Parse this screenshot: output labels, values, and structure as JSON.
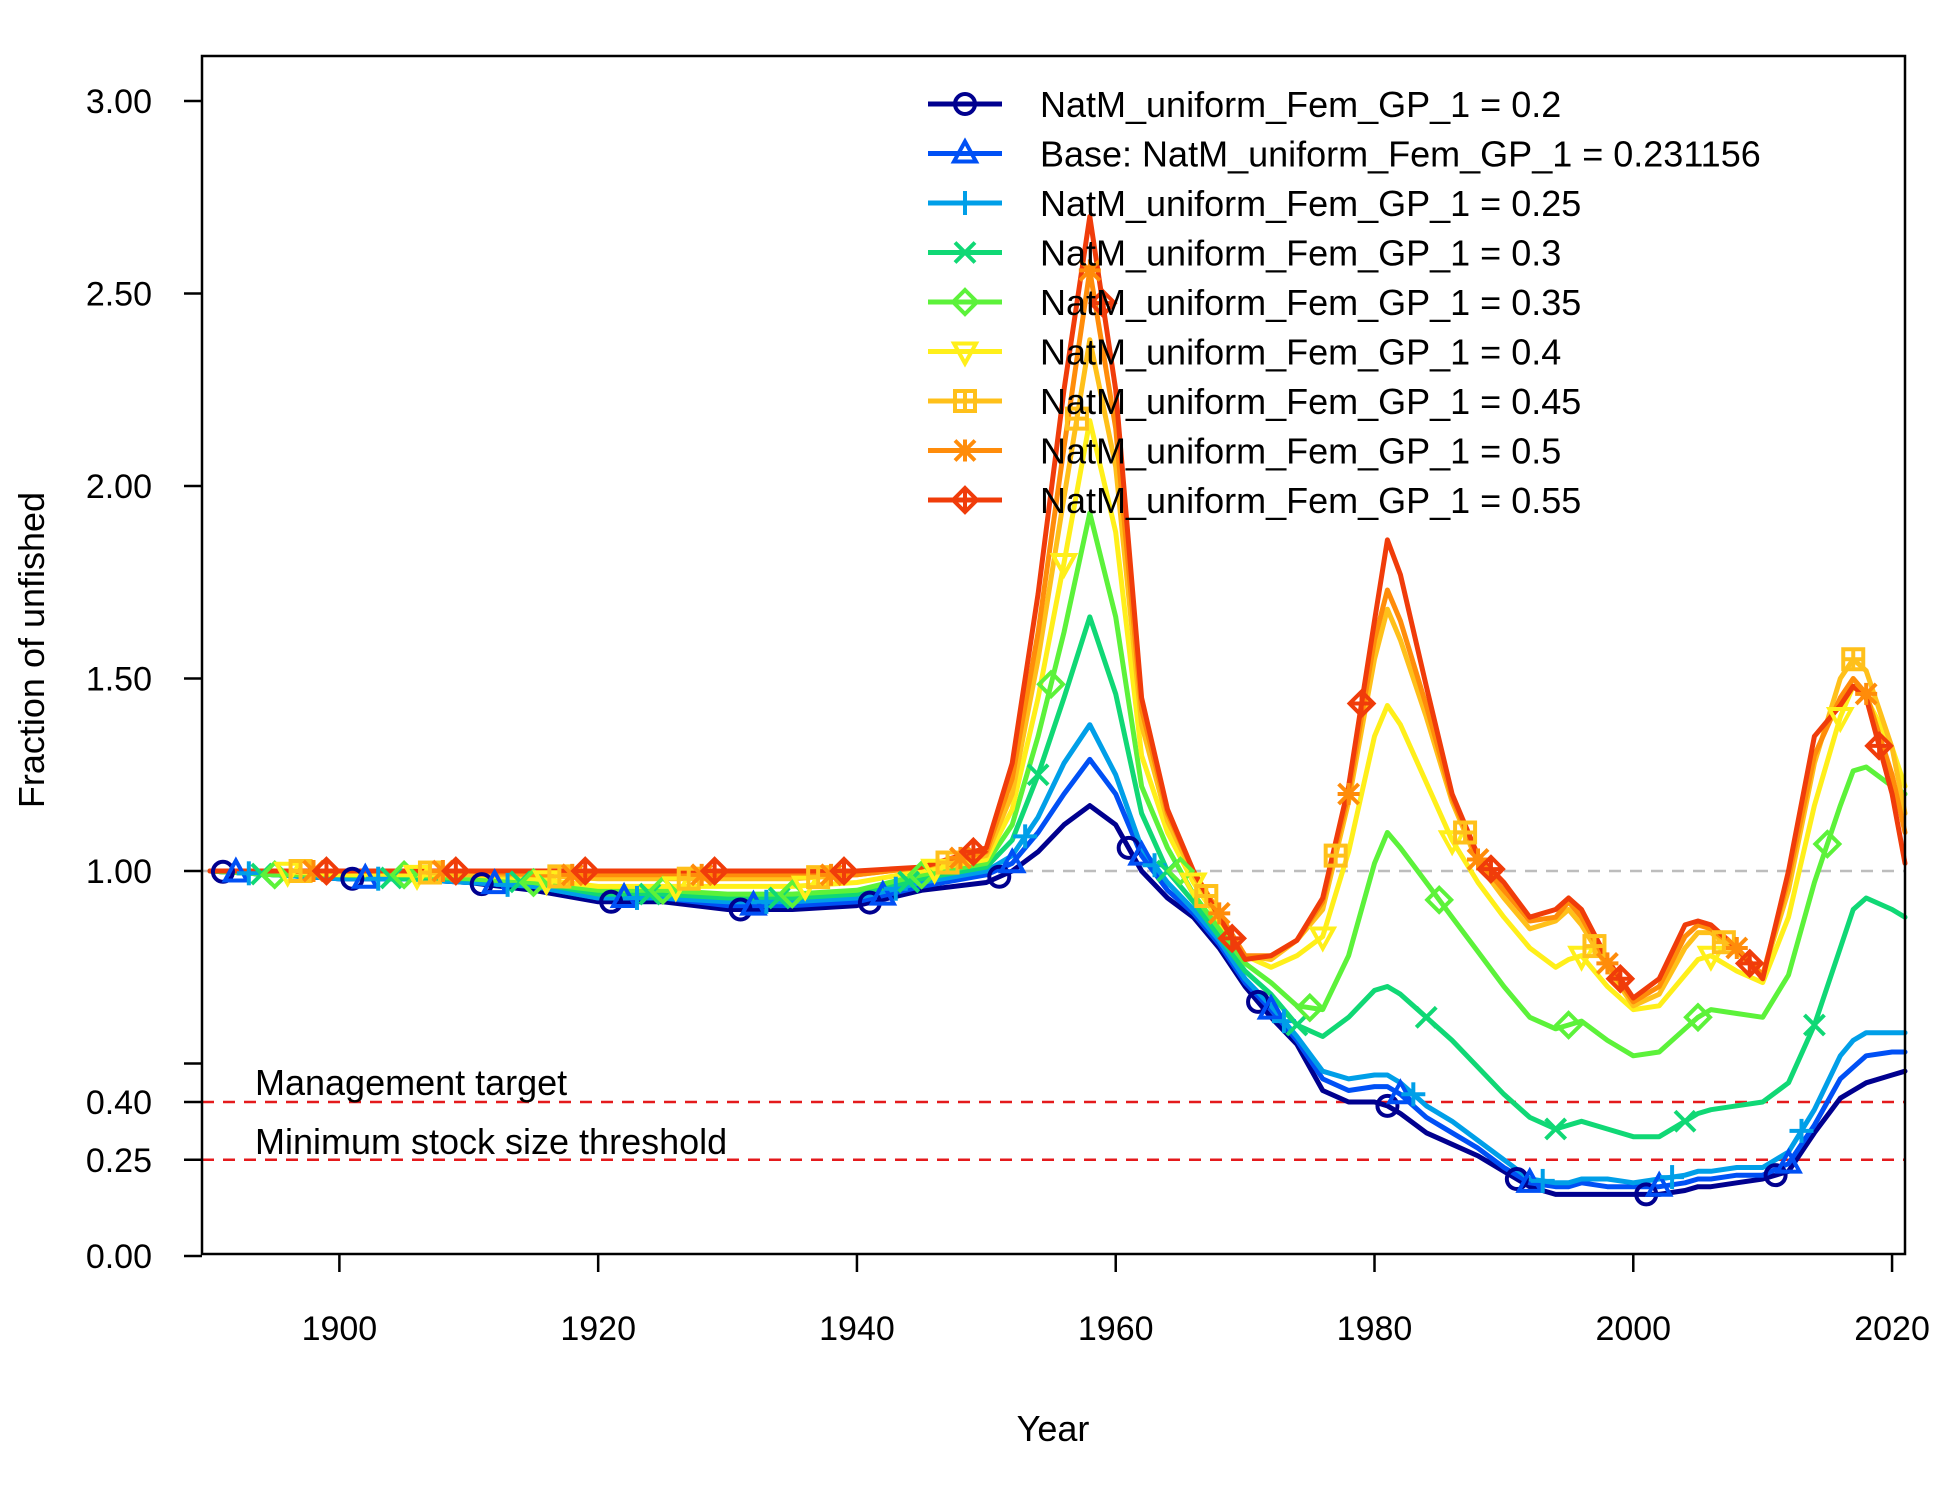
{
  "chart_data": {
    "type": "line",
    "title": "",
    "xlabel": "Year",
    "ylabel": "Fraction of unfished",
    "xlim": [
      1890,
      2021
    ],
    "ylim": [
      0,
      3.0
    ],
    "x_ticks": [
      1900,
      1920,
      1940,
      1960,
      1980,
      2000,
      2020
    ],
    "x_tick_labels": [
      "1900",
      "1920",
      "1940",
      "1960",
      "1980",
      "2000",
      "2020"
    ],
    "y_ticks": [
      0.0,
      0.25,
      0.4,
      1.0,
      1.5,
      2.0,
      2.5,
      3.0
    ],
    "y_tick_labels": [
      "0.00",
      "0.25",
      "0.40",
      "1.00",
      "1.50",
      "2.00",
      "2.50",
      "3.00"
    ],
    "y_minor_ticks": [
      0.5
    ],
    "legend_position": "top-right",
    "reference_lines": [
      {
        "label": "Management target",
        "y": 0.4,
        "color": "#e41a1c",
        "style": "dashed"
      },
      {
        "label": "Minimum stock size threshold",
        "y": 0.25,
        "color": "#e41a1c",
        "style": "dashed"
      },
      {
        "label": "",
        "y": 1.0,
        "color": "#bdbdbd",
        "style": "dashed"
      }
    ],
    "x": [
      1890,
      1895,
      1900,
      1905,
      1910,
      1915,
      1920,
      1925,
      1930,
      1935,
      1940,
      1945,
      1950,
      1952,
      1954,
      1956,
      1958,
      1960,
      1962,
      1964,
      1966,
      1968,
      1970,
      1972,
      1974,
      1976,
      1978,
      1980,
      1981,
      1982,
      1984,
      1986,
      1988,
      1990,
      1992,
      1994,
      1995,
      1996,
      1998,
      2000,
      2002,
      2004,
      2005,
      2006,
      2008,
      2010,
      2012,
      2014,
      2016,
      2017,
      2018,
      2020,
      2021
    ],
    "series": [
      {
        "name": "NatM_uniform_Fem_GP_1 = 0.2",
        "color": "#00008f",
        "marker": "circle",
        "values": [
          1.0,
          0.99,
          0.98,
          0.98,
          0.97,
          0.95,
          0.92,
          0.92,
          0.9,
          0.9,
          0.91,
          0.95,
          0.97,
          1.0,
          1.05,
          1.12,
          1.17,
          1.12,
          1.0,
          0.93,
          0.88,
          0.8,
          0.7,
          0.62,
          0.55,
          0.43,
          0.4,
          0.4,
          0.39,
          0.37,
          0.32,
          0.29,
          0.26,
          0.22,
          0.18,
          0.16,
          0.16,
          0.16,
          0.16,
          0.16,
          0.16,
          0.17,
          0.18,
          0.18,
          0.19,
          0.2,
          0.22,
          0.32,
          0.41,
          0.43,
          0.45,
          0.47,
          0.48
        ]
      },
      {
        "name": "Base: NatM_uniform_Fem_GP_1 = 0.231156",
        "color": "#0050f5",
        "marker": "triangle",
        "values": [
          1.0,
          0.99,
          0.98,
          0.98,
          0.97,
          0.96,
          0.93,
          0.93,
          0.91,
          0.91,
          0.92,
          0.96,
          0.99,
          1.02,
          1.1,
          1.2,
          1.29,
          1.2,
          1.04,
          0.95,
          0.89,
          0.81,
          0.71,
          0.64,
          0.56,
          0.46,
          0.43,
          0.44,
          0.44,
          0.42,
          0.36,
          0.32,
          0.28,
          0.23,
          0.19,
          0.18,
          0.18,
          0.19,
          0.18,
          0.18,
          0.18,
          0.19,
          0.2,
          0.2,
          0.21,
          0.21,
          0.24,
          0.34,
          0.46,
          0.49,
          0.52,
          0.53,
          0.53
        ]
      },
      {
        "name": "NatM_uniform_Fem_GP_1 = 0.25",
        "color": "#009fe8",
        "marker": "plus",
        "values": [
          1.0,
          0.99,
          0.98,
          0.98,
          0.97,
          0.96,
          0.93,
          0.93,
          0.92,
          0.92,
          0.93,
          0.97,
          1.0,
          1.04,
          1.14,
          1.28,
          1.38,
          1.25,
          1.06,
          0.97,
          0.9,
          0.82,
          0.72,
          0.65,
          0.57,
          0.48,
          0.46,
          0.47,
          0.47,
          0.45,
          0.39,
          0.35,
          0.3,
          0.25,
          0.2,
          0.19,
          0.19,
          0.2,
          0.2,
          0.19,
          0.2,
          0.21,
          0.22,
          0.22,
          0.23,
          0.23,
          0.27,
          0.38,
          0.52,
          0.56,
          0.58,
          0.58,
          0.58
        ]
      },
      {
        "name": "NatM_uniform_Fem_GP_1 = 0.3",
        "color": "#10d875",
        "marker": "cross",
        "values": [
          1.0,
          0.99,
          0.99,
          0.98,
          0.98,
          0.97,
          0.94,
          0.94,
          0.93,
          0.93,
          0.94,
          0.98,
          1.01,
          1.08,
          1.25,
          1.45,
          1.66,
          1.46,
          1.15,
          1.0,
          0.92,
          0.83,
          0.74,
          0.68,
          0.6,
          0.57,
          0.62,
          0.69,
          0.7,
          0.68,
          0.62,
          0.56,
          0.49,
          0.42,
          0.36,
          0.33,
          0.34,
          0.35,
          0.33,
          0.31,
          0.31,
          0.35,
          0.37,
          0.38,
          0.39,
          0.4,
          0.45,
          0.6,
          0.8,
          0.9,
          0.93,
          0.9,
          0.88
        ]
      },
      {
        "name": "NatM_uniform_Fem_GP_1 = 0.35",
        "color": "#5cf23a",
        "marker": "diamond",
        "values": [
          1.0,
          0.99,
          0.99,
          0.99,
          0.98,
          0.97,
          0.95,
          0.95,
          0.94,
          0.94,
          0.95,
          0.99,
          1.02,
          1.12,
          1.35,
          1.62,
          1.93,
          1.66,
          1.22,
          1.06,
          0.94,
          0.85,
          0.76,
          0.71,
          0.65,
          0.64,
          0.78,
          1.02,
          1.1,
          1.06,
          0.97,
          0.88,
          0.79,
          0.7,
          0.62,
          0.59,
          0.6,
          0.61,
          0.56,
          0.52,
          0.53,
          0.59,
          0.62,
          0.64,
          0.63,
          0.62,
          0.73,
          0.97,
          1.17,
          1.26,
          1.27,
          1.22,
          1.2
        ]
      },
      {
        "name": "NatM_uniform_Fem_GP_1 = 0.4",
        "color": "#ffef1a",
        "marker": "triangle-down",
        "values": [
          1.0,
          1.0,
          0.99,
          0.99,
          0.99,
          0.98,
          0.96,
          0.96,
          0.96,
          0.96,
          0.97,
          1.0,
          1.03,
          1.16,
          1.45,
          1.8,
          2.17,
          1.88,
          1.3,
          1.1,
          0.97,
          0.87,
          0.78,
          0.75,
          0.78,
          0.83,
          1.05,
          1.35,
          1.43,
          1.38,
          1.23,
          1.08,
          0.97,
          0.88,
          0.8,
          0.75,
          0.77,
          0.78,
          0.7,
          0.64,
          0.65,
          0.73,
          0.77,
          0.78,
          0.74,
          0.71,
          0.88,
          1.17,
          1.4,
          1.48,
          1.45,
          1.32,
          1.22
        ]
      },
      {
        "name": "NatM_uniform_Fem_GP_1 = 0.45",
        "color": "#ffc01a",
        "marker": "square",
        "values": [
          1.0,
          1.0,
          1.0,
          1.0,
          0.99,
          0.99,
          0.98,
          0.98,
          0.98,
          0.98,
          0.99,
          1.01,
          1.04,
          1.2,
          1.55,
          1.97,
          2.38,
          2.05,
          1.38,
          1.13,
          0.99,
          0.88,
          0.78,
          0.77,
          0.82,
          0.9,
          1.18,
          1.55,
          1.68,
          1.6,
          1.4,
          1.18,
          1.02,
          0.93,
          0.85,
          0.87,
          0.9,
          0.86,
          0.75,
          0.65,
          0.68,
          0.8,
          0.84,
          0.84,
          0.79,
          0.73,
          0.95,
          1.28,
          1.5,
          1.55,
          1.52,
          1.32,
          1.15
        ]
      },
      {
        "name": "NatM_uniform_Fem_GP_1 = 0.5",
        "color": "#ff8c0a",
        "marker": "asterisk",
        "values": [
          1.0,
          1.0,
          1.0,
          1.0,
          1.0,
          0.99,
          0.99,
          0.99,
          0.99,
          0.99,
          0.99,
          1.01,
          1.05,
          1.24,
          1.62,
          2.1,
          2.56,
          2.15,
          1.42,
          1.15,
          1.0,
          0.89,
          0.78,
          0.78,
          0.82,
          0.92,
          1.2,
          1.6,
          1.73,
          1.65,
          1.43,
          1.19,
          1.03,
          0.95,
          0.87,
          0.88,
          0.92,
          0.88,
          0.76,
          0.66,
          0.7,
          0.83,
          0.86,
          0.85,
          0.8,
          0.73,
          0.98,
          1.3,
          1.45,
          1.5,
          1.46,
          1.25,
          1.1
        ]
      },
      {
        "name": "NatM_uniform_Fem_GP_1 = 0.55",
        "color": "#f03c0a",
        "marker": "diamond-plus",
        "values": [
          1.0,
          1.0,
          1.0,
          1.0,
          1.0,
          1.0,
          1.0,
          1.0,
          1.0,
          1.0,
          1.0,
          1.01,
          1.06,
          1.28,
          1.72,
          2.25,
          2.7,
          2.25,
          1.45,
          1.16,
          1.0,
          0.88,
          0.77,
          0.78,
          0.82,
          0.93,
          1.22,
          1.65,
          1.86,
          1.77,
          1.48,
          1.2,
          1.04,
          0.97,
          0.88,
          0.9,
          0.93,
          0.9,
          0.77,
          0.67,
          0.72,
          0.86,
          0.87,
          0.86,
          0.8,
          0.72,
          1.0,
          1.35,
          1.43,
          1.48,
          1.45,
          1.2,
          1.02
        ]
      }
    ]
  }
}
